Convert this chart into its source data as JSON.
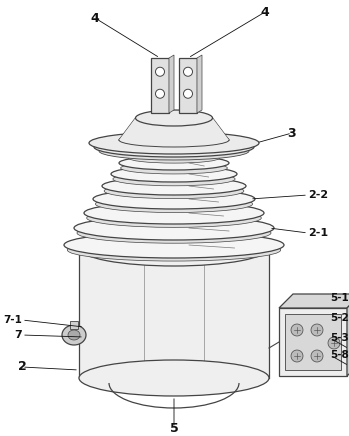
{
  "bg_color": "#ffffff",
  "line_color": "#444444",
  "fill_body": "#efefef",
  "fill_shed": "#f5f5f5",
  "fill_shed_shadow": "#e0e0e0",
  "fill_cap": "#ebebeb",
  "fill_box": "#eeeeee",
  "fill_box_top": "#d8d8d8",
  "fill_box_right": "#d0d0d0",
  "fill_bolt": "#cccccc",
  "labels": {
    "4l": "4",
    "4r": "4",
    "3": "3",
    "2_2": "2-2",
    "2_1": "2-1",
    "7_1": "7-1",
    "7": "7",
    "2": "2",
    "5": "5",
    "5_1": "5-1",
    "5_2": "5-2",
    "5_3": "5-3",
    "5_8": "5-8"
  },
  "figsize": [
    3.49,
    4.36
  ],
  "dpi": 100
}
